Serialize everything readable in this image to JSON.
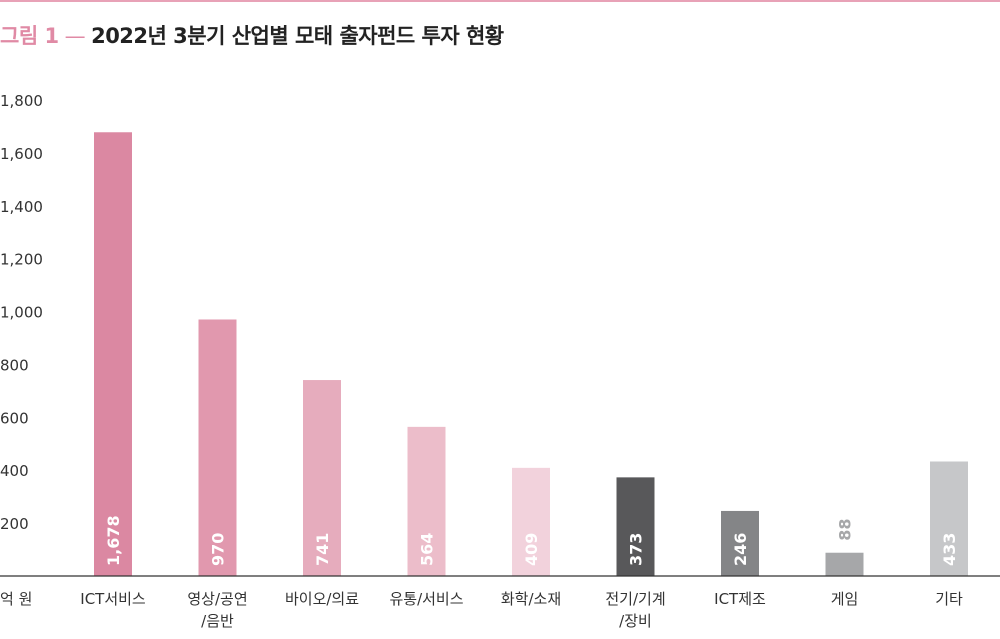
{
  "title": {
    "figure_label": "그림 1",
    "dash": "—",
    "text": "2022년 3분기 산업별 모태 출자펀드 투자 현황"
  },
  "chart_data": {
    "type": "bar",
    "title": "2022년 3분기 산업별 모태 출자펀드 투자 현황",
    "unit_label": "억 원",
    "ylim": [
      0,
      1800
    ],
    "y_ticks": [
      "200",
      "400",
      "600",
      "800",
      "1,000",
      "1,200",
      "1,400",
      "1,600",
      "1,800"
    ],
    "y_tick_values": [
      200,
      400,
      600,
      800,
      1000,
      1200,
      1400,
      1600,
      1800
    ],
    "categories": [
      [
        "ICT서비스"
      ],
      [
        "영상/공연",
        "/음반"
      ],
      [
        "바이오/의료"
      ],
      [
        "유통/서비스"
      ],
      [
        "화학/소재"
      ],
      [
        "전기/기계",
        "/장비"
      ],
      [
        "ICT제조"
      ],
      [
        "게임"
      ],
      [
        "기타"
      ]
    ],
    "values": [
      1678,
      970,
      741,
      564,
      409,
      373,
      246,
      88,
      433
    ],
    "value_labels": [
      "1,678",
      "970",
      "741",
      "564",
      "409",
      "373",
      "246",
      "88",
      "433"
    ],
    "bar_colors": [
      "#db88a2",
      "#e198ae",
      "#e6acbd",
      "#ecbdca",
      "#f2d2dc",
      "#58585a",
      "#848587",
      "#a6a7a9",
      "#c6c7c9"
    ],
    "label_colors": [
      "#ffffff",
      "#ffffff",
      "#ffffff",
      "#ffffff",
      "#ffffff",
      "#ffffff",
      "#ffffff",
      "#a6a7a9",
      "#ffffff"
    ],
    "grid": false,
    "legend": "none"
  }
}
